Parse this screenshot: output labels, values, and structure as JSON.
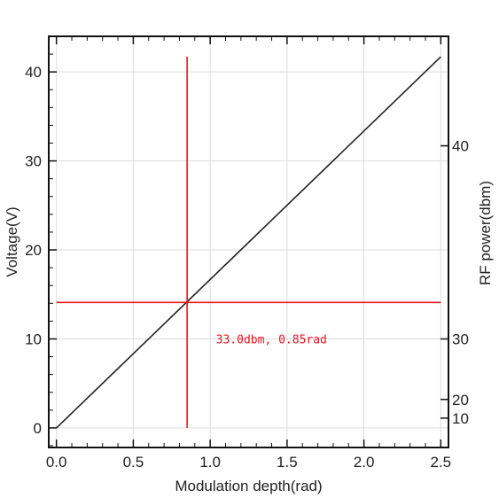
{
  "chart_data": {
    "type": "line",
    "title": "",
    "xlabel": "Modulation depth(rad)",
    "ylabel": "Voltage(V)",
    "y2label": "RF power(dbm)",
    "xlim": [
      -0.05,
      2.55
    ],
    "ylim": [
      -2.2,
      44.0
    ],
    "grid": true,
    "x_ticks": [
      0.0,
      0.5,
      1.0,
      1.5,
      2.0,
      2.5
    ],
    "x_tick_labels": [
      "0.0",
      "0.5",
      "1.0",
      "1.5",
      "2.0",
      "2.5"
    ],
    "y_ticks": [
      0,
      10,
      20,
      30,
      40
    ],
    "y_tick_labels": [
      "0",
      "10",
      "20",
      "30",
      "40"
    ],
    "y2_ticks": [
      {
        "label": "10",
        "voltage": 1.1
      },
      {
        "label": "20",
        "voltage": 3.2
      },
      {
        "label": "30",
        "voltage": 10.0
      },
      {
        "label": "40",
        "voltage": 31.7
      }
    ],
    "series": [
      {
        "color": "#222222",
        "x": [
          0.0,
          2.5
        ],
        "y": [
          0.0,
          41.7
        ]
      }
    ],
    "markers": {
      "color": "#e8141d",
      "vertical": {
        "x": 0.85,
        "y_range": [
          0.0,
          41.7
        ]
      },
      "horizontal": {
        "y": 14.1,
        "x_range": [
          0.0,
          2.5
        ]
      },
      "annotation": {
        "text": "33.0dbm, 0.85rad",
        "x": 0.98,
        "y": 10.0
      }
    }
  }
}
